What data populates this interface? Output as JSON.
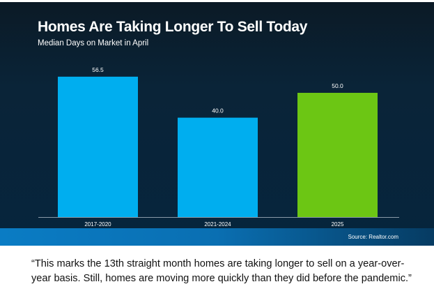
{
  "chart_data": {
    "type": "bar",
    "title": "Homes Are Taking Longer To Sell Today",
    "subtitle": "Median Days on Market in April",
    "categories": [
      "2017-2020",
      "2021-2024",
      "2025"
    ],
    "values": [
      56.5,
      40.0,
      50.0
    ],
    "value_labels": [
      "56.5",
      "40.0",
      "50.0"
    ],
    "colors": [
      "#00aeef",
      "#00aeef",
      "#6cc614"
    ],
    "xlabel": "",
    "ylabel": "",
    "ylim": [
      0,
      60
    ],
    "grid": false,
    "source": "Source: Realtor.com"
  },
  "quote": "“This marks the 13th straight month homes are taking longer to sell on a year-over-year basis. Still, homes are moving more quickly than they did before the pandemic.”"
}
